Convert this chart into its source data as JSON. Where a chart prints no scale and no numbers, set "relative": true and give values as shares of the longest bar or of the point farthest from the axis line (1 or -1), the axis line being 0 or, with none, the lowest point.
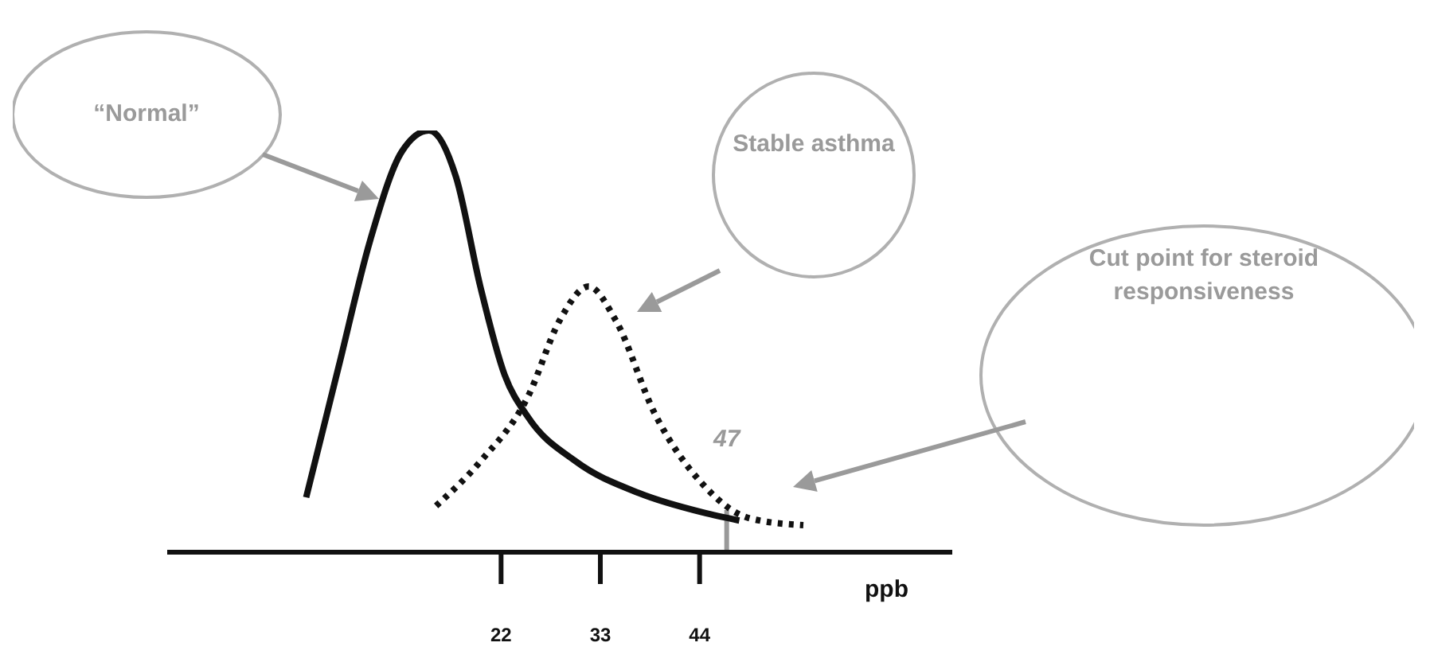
{
  "chart_data": {
    "type": "line",
    "relative": true,
    "xlabel": "ppb",
    "xlim": [
      -15,
      72
    ],
    "xticks": [
      22,
      33,
      44
    ],
    "marker": "none",
    "legend": false,
    "grid": false,
    "tick_labels": "x",
    "series": [
      {
        "color": "#111111",
        "line_style": "solid",
        "x": [
          0.4,
          4,
          7.5,
          11,
          14,
          17,
          19.7,
          22.4,
          25,
          30.3,
          37.3,
          44.4,
          48.4
        ],
        "values": [
          0.13,
          0.44,
          0.74,
          0.95,
          1,
          0.89,
          0.63,
          0.42,
          0.32,
          0.215,
          0.14,
          0.094,
          0.075
        ]
      },
      {
        "color": "#111111",
        "line_style": "dotted",
        "x": [
          14.8,
          19.7,
          25,
          28.5,
          31.7,
          34.7,
          39,
          44.4,
          49.6,
          55.5
        ],
        "values": [
          0.11,
          0.215,
          0.37,
          0.55,
          0.63,
          0.55,
          0.33,
          0.16,
          0.08,
          0.064
        ]
      }
    ],
    "ref_lines": [
      {
        "axis": "x",
        "value": 47,
        "label": "47",
        "color": "#999999"
      }
    ],
    "annotations": [
      "“Normal”",
      "Stable asthma",
      "Cut point for steroid responsiveness"
    ]
  }
}
